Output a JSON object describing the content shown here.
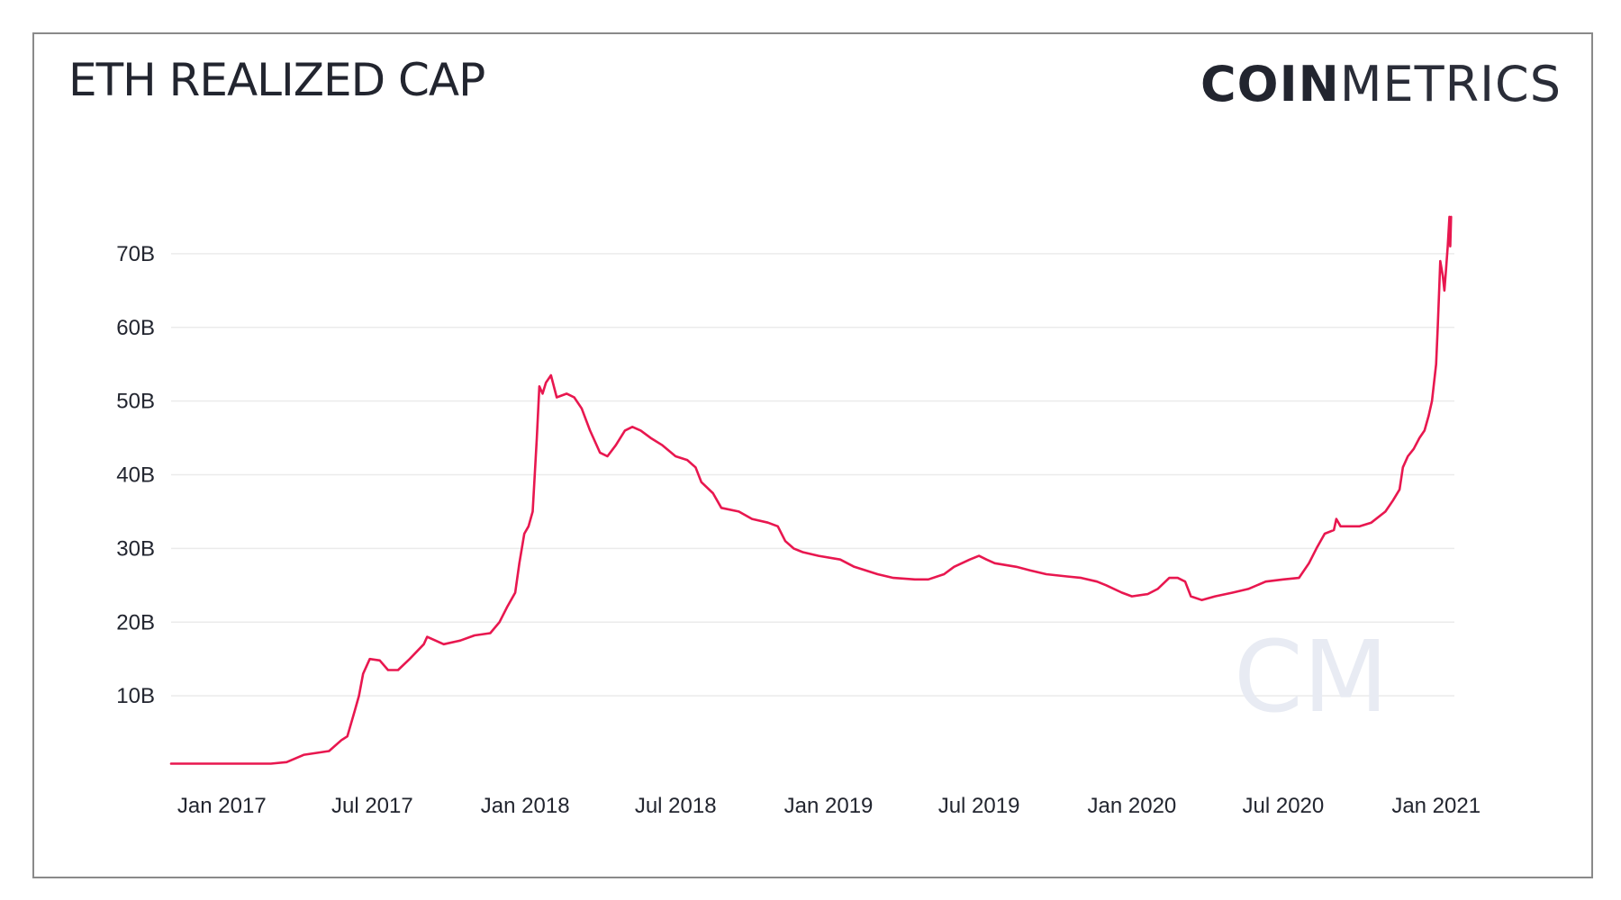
{
  "header": {
    "title": "ETH REALIZED CAP",
    "brand_bold": "COIN",
    "brand_light": "METRICS"
  },
  "watermark": "CM",
  "colors": {
    "line": "#e8174f",
    "grid": "#ebebeb",
    "text": "#22252f",
    "frame": "#8a8a8a"
  },
  "chart_data": {
    "type": "line",
    "title": "ETH REALIZED CAP",
    "xlabel": "",
    "ylabel": "",
    "ylim": [
      0,
      80
    ],
    "y_unit": "B",
    "yticks": [
      {
        "v": 10,
        "label": "10B"
      },
      {
        "v": 20,
        "label": "20B"
      },
      {
        "v": 30,
        "label": "30B"
      },
      {
        "v": 40,
        "label": "40B"
      },
      {
        "v": 50,
        "label": "50B"
      },
      {
        "v": 60,
        "label": "60B"
      },
      {
        "v": 70,
        "label": "70B"
      }
    ],
    "xlim": [
      "2016-11-01",
      "2021-01-23"
    ],
    "xticks": [
      {
        "date": "2017-01-01",
        "label": "Jan 2017"
      },
      {
        "date": "2017-07-01",
        "label": "Jul 2017"
      },
      {
        "date": "2018-01-01",
        "label": "Jan 2018"
      },
      {
        "date": "2018-07-01",
        "label": "Jul 2018"
      },
      {
        "date": "2019-01-01",
        "label": "Jan 2019"
      },
      {
        "date": "2019-07-01",
        "label": "Jul 2019"
      },
      {
        "date": "2020-01-01",
        "label": "Jan 2020"
      },
      {
        "date": "2020-07-01",
        "label": "Jul 2020"
      },
      {
        "date": "2021-01-01",
        "label": "Jan 2021"
      }
    ],
    "series": [
      {
        "points": [
          [
            "2016-11-01",
            0.8
          ],
          [
            "2017-01-01",
            0.8
          ],
          [
            "2017-03-01",
            0.8
          ],
          [
            "2017-03-20",
            1.0
          ],
          [
            "2017-04-10",
            2.0
          ],
          [
            "2017-05-10",
            2.5
          ],
          [
            "2017-05-25",
            4.0
          ],
          [
            "2017-06-01",
            4.5
          ],
          [
            "2017-06-10",
            8.0
          ],
          [
            "2017-06-15",
            10.0
          ],
          [
            "2017-06-20",
            13.0
          ],
          [
            "2017-06-28",
            15.0
          ],
          [
            "2017-07-10",
            14.8
          ],
          [
            "2017-07-20",
            13.5
          ],
          [
            "2017-08-01",
            13.5
          ],
          [
            "2017-08-15",
            15.0
          ],
          [
            "2017-09-01",
            17.0
          ],
          [
            "2017-09-05",
            18.0
          ],
          [
            "2017-09-15",
            17.5
          ],
          [
            "2017-09-25",
            17.0
          ],
          [
            "2017-10-15",
            17.5
          ],
          [
            "2017-11-01",
            18.2
          ],
          [
            "2017-11-20",
            18.5
          ],
          [
            "2017-12-01",
            20.0
          ],
          [
            "2017-12-10",
            22.0
          ],
          [
            "2017-12-20",
            24.0
          ],
          [
            "2017-12-25",
            28.0
          ],
          [
            "2017-12-31",
            32.0
          ],
          [
            "2018-01-05",
            33.0
          ],
          [
            "2018-01-10",
            35.0
          ],
          [
            "2018-01-15",
            45.0
          ],
          [
            "2018-01-18",
            52.0
          ],
          [
            "2018-01-22",
            51.0
          ],
          [
            "2018-01-26",
            52.5
          ],
          [
            "2018-02-01",
            53.5
          ],
          [
            "2018-02-08",
            50.5
          ],
          [
            "2018-02-20",
            51.0
          ],
          [
            "2018-03-01",
            50.5
          ],
          [
            "2018-03-10",
            49.0
          ],
          [
            "2018-03-20",
            46.0
          ],
          [
            "2018-04-01",
            43.0
          ],
          [
            "2018-04-10",
            42.5
          ],
          [
            "2018-04-20",
            44.0
          ],
          [
            "2018-05-01",
            46.0
          ],
          [
            "2018-05-10",
            46.5
          ],
          [
            "2018-05-20",
            46.0
          ],
          [
            "2018-06-01",
            45.0
          ],
          [
            "2018-06-15",
            44.0
          ],
          [
            "2018-07-01",
            42.5
          ],
          [
            "2018-07-15",
            42.0
          ],
          [
            "2018-07-25",
            41.0
          ],
          [
            "2018-08-01",
            39.0
          ],
          [
            "2018-08-15",
            37.5
          ],
          [
            "2018-08-25",
            35.5
          ],
          [
            "2018-09-15",
            35.0
          ],
          [
            "2018-10-01",
            34.0
          ],
          [
            "2018-10-20",
            33.5
          ],
          [
            "2018-11-01",
            33.0
          ],
          [
            "2018-11-10",
            31.0
          ],
          [
            "2018-11-20",
            30.0
          ],
          [
            "2018-12-01",
            29.5
          ],
          [
            "2018-12-20",
            29.0
          ],
          [
            "2019-01-15",
            28.5
          ],
          [
            "2019-02-01",
            27.5
          ],
          [
            "2019-02-15",
            27.0
          ],
          [
            "2019-03-01",
            26.5
          ],
          [
            "2019-03-20",
            26.0
          ],
          [
            "2019-04-15",
            25.8
          ],
          [
            "2019-05-01",
            25.8
          ],
          [
            "2019-05-20",
            26.5
          ],
          [
            "2019-06-01",
            27.5
          ],
          [
            "2019-06-20",
            28.5
          ],
          [
            "2019-07-01",
            29.0
          ],
          [
            "2019-07-10",
            28.5
          ],
          [
            "2019-07-20",
            28.0
          ],
          [
            "2019-08-15",
            27.5
          ],
          [
            "2019-09-01",
            27.0
          ],
          [
            "2019-09-20",
            26.5
          ],
          [
            "2019-10-15",
            26.2
          ],
          [
            "2019-11-01",
            26.0
          ],
          [
            "2019-11-20",
            25.5
          ],
          [
            "2019-12-01",
            25.0
          ],
          [
            "2019-12-20",
            24.0
          ],
          [
            "2020-01-01",
            23.5
          ],
          [
            "2020-01-20",
            23.8
          ],
          [
            "2020-02-01",
            24.5
          ],
          [
            "2020-02-15",
            26.0
          ],
          [
            "2020-02-25",
            26.0
          ],
          [
            "2020-03-05",
            25.5
          ],
          [
            "2020-03-12",
            23.5
          ],
          [
            "2020-03-25",
            23.0
          ],
          [
            "2020-04-10",
            23.5
          ],
          [
            "2020-05-01",
            24.0
          ],
          [
            "2020-05-20",
            24.5
          ],
          [
            "2020-06-10",
            25.5
          ],
          [
            "2020-07-01",
            25.8
          ],
          [
            "2020-07-20",
            26.0
          ],
          [
            "2020-08-01",
            28.0
          ],
          [
            "2020-08-10",
            30.0
          ],
          [
            "2020-08-20",
            32.0
          ],
          [
            "2020-08-31",
            32.5
          ],
          [
            "2020-09-03",
            34.0
          ],
          [
            "2020-09-08",
            33.0
          ],
          [
            "2020-09-20",
            33.0
          ],
          [
            "2020-10-01",
            33.0
          ],
          [
            "2020-10-15",
            33.5
          ],
          [
            "2020-11-01",
            35.0
          ],
          [
            "2020-11-10",
            36.5
          ],
          [
            "2020-11-18",
            38.0
          ],
          [
            "2020-11-22",
            41.0
          ],
          [
            "2020-11-28",
            42.5
          ],
          [
            "2020-12-05",
            43.5
          ],
          [
            "2020-12-12",
            45.0
          ],
          [
            "2020-12-18",
            46.0
          ],
          [
            "2020-12-23",
            48.0
          ],
          [
            "2020-12-27",
            50.0
          ],
          [
            "2021-01-01",
            55.0
          ],
          [
            "2021-01-03",
            60.0
          ],
          [
            "2021-01-05",
            66.0
          ],
          [
            "2021-01-06",
            69.0
          ],
          [
            "2021-01-09",
            67.0
          ],
          [
            "2021-01-11",
            65.0
          ],
          [
            "2021-01-13",
            68.0
          ],
          [
            "2021-01-15",
            71.0
          ],
          [
            "2021-01-17",
            75.0
          ],
          [
            "2021-01-18",
            71.0
          ],
          [
            "2021-01-19",
            75.0
          ]
        ]
      }
    ]
  }
}
